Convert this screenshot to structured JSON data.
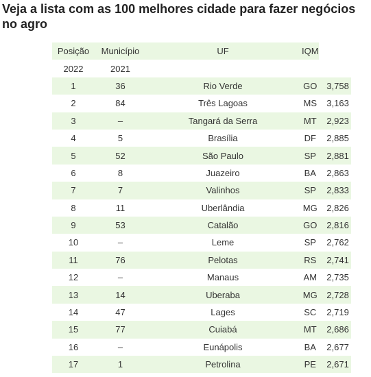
{
  "title": "Veja a lista com as 100 melhores cidade para fazer negócios no agro",
  "headers": {
    "posicao": "Posição",
    "municipio": "Município",
    "uf": "UF",
    "iqm": "IQM",
    "year_2022": "2022",
    "year_2021": "2021"
  },
  "rows": [
    {
      "pos2022": "1",
      "pos2021": "36",
      "city": "Rio Verde",
      "uf": "GO",
      "iqm": "3,758"
    },
    {
      "pos2022": "2",
      "pos2021": "84",
      "city": "Três Lagoas",
      "uf": "MS",
      "iqm": "3,163"
    },
    {
      "pos2022": "3",
      "pos2021": "–",
      "city": "Tangará da Serra",
      "uf": "MT",
      "iqm": "2,923"
    },
    {
      "pos2022": "4",
      "pos2021": "5",
      "city": "Brasília",
      "uf": "DF",
      "iqm": "2,885"
    },
    {
      "pos2022": "5",
      "pos2021": "52",
      "city": "São Paulo",
      "uf": "SP",
      "iqm": "2,881"
    },
    {
      "pos2022": "6",
      "pos2021": "8",
      "city": "Juazeiro",
      "uf": "BA",
      "iqm": "2,863"
    },
    {
      "pos2022": "7",
      "pos2021": "7",
      "city": "Valinhos",
      "uf": "SP",
      "iqm": "2,833"
    },
    {
      "pos2022": "8",
      "pos2021": "11",
      "city": "Uberlândia",
      "uf": "MG",
      "iqm": "2,826"
    },
    {
      "pos2022": "9",
      "pos2021": "53",
      "city": "Catalão",
      "uf": "GO",
      "iqm": "2,816"
    },
    {
      "pos2022": "10",
      "pos2021": "–",
      "city": "Leme",
      "uf": "SP",
      "iqm": "2,762"
    },
    {
      "pos2022": "11",
      "pos2021": "76",
      "city": "Pelotas",
      "uf": "RS",
      "iqm": "2,741"
    },
    {
      "pos2022": "12",
      "pos2021": "–",
      "city": "Manaus",
      "uf": "AM",
      "iqm": "2,735"
    },
    {
      "pos2022": "13",
      "pos2021": "14",
      "city": "Uberaba",
      "uf": "MG",
      "iqm": "2,728"
    },
    {
      "pos2022": "14",
      "pos2021": "47",
      "city": "Lages",
      "uf": "SC",
      "iqm": "2,719"
    },
    {
      "pos2022": "15",
      "pos2021": "77",
      "city": "Cuiabá",
      "uf": "MT",
      "iqm": "2,686"
    },
    {
      "pos2022": "16",
      "pos2021": "–",
      "city": "Eunápolis",
      "uf": "BA",
      "iqm": "2,677"
    },
    {
      "pos2022": "17",
      "pos2021": "1",
      "city": "Petrolina",
      "uf": "PE",
      "iqm": "2,671"
    }
  ],
  "colors": {
    "stripe": "#eaf7e2",
    "text": "#333333",
    "title": "#222222"
  }
}
